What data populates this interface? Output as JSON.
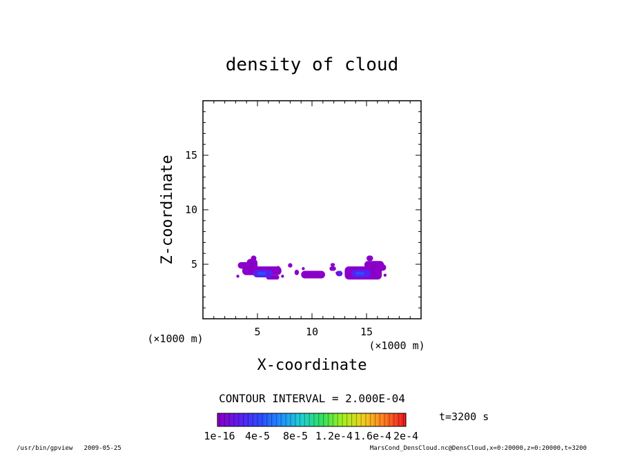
{
  "chart_data": {
    "type": "heatmap",
    "title": "density of cloud",
    "xlabel": "X-coordinate",
    "ylabel": "Z-coordinate",
    "x_unit": "(×1000 m)",
    "y_unit": "(×1000 m)",
    "xlim": [
      0,
      20
    ],
    "ylim": [
      0,
      20
    ],
    "xticks": [
      5,
      10,
      15
    ],
    "yticks": [
      5,
      10,
      15
    ],
    "contour_interval": "CONTOUR INTERVAL = 2.000E-04",
    "time_label": "t=3200 s",
    "colorbar": {
      "labels": [
        "1e-16",
        "4e-5",
        "8e-5",
        "1.2e-4",
        "1.6e-4",
        "2e-4"
      ],
      "colors": [
        "#8a00c8",
        "#5a20f0",
        "#2a4cff",
        "#1e90ff",
        "#20d0d0",
        "#30e060",
        "#a0f020",
        "#f0d020",
        "#ff8020",
        "#f02020"
      ]
    },
    "regions": [
      {
        "level": 1,
        "color": "#8a00c8",
        "cells": [
          [
            3.2,
            4.2,
            4.6,
            5.2
          ],
          [
            4.0,
            5.0,
            4.2,
            5.5
          ],
          [
            4.4,
            4.9,
            5.3,
            5.8
          ],
          [
            3.6,
            7.2,
            4.0,
            4.8
          ],
          [
            5.8,
            7.0,
            3.6,
            4.0
          ],
          [
            7.8,
            8.2,
            4.7,
            5.1
          ],
          [
            8.4,
            8.8,
            4.0,
            4.5
          ],
          [
            9.0,
            11.2,
            3.7,
            4.4
          ],
          [
            11.6,
            12.2,
            4.4,
            4.8
          ],
          [
            11.7,
            12.1,
            4.8,
            5.1
          ],
          [
            13.0,
            16.4,
            3.6,
            4.8
          ],
          [
            14.8,
            16.6,
            4.6,
            5.3
          ],
          [
            15.9,
            16.8,
            4.4,
            5.0
          ],
          [
            15.0,
            15.6,
            5.3,
            5.8
          ]
        ]
      },
      {
        "level": 2,
        "color": "#5a20f0",
        "cells": [
          [
            4.6,
            6.4,
            3.8,
            4.5
          ],
          [
            13.6,
            15.4,
            3.8,
            4.5
          ],
          [
            12.2,
            12.8,
            3.9,
            4.4
          ]
        ]
      },
      {
        "level": 3,
        "color": "#2a4cff",
        "cells": [
          [
            5.0,
            5.8,
            4.0,
            4.3
          ],
          [
            14.0,
            14.8,
            4.0,
            4.3
          ]
        ]
      }
    ],
    "isolated_points": [
      [
        3.2,
        3.9
      ],
      [
        7.3,
        3.9
      ],
      [
        9.2,
        4.6
      ],
      [
        12.3,
        4.2
      ],
      [
        16.7,
        4.0
      ],
      [
        6.9,
        4.7
      ]
    ]
  },
  "footer": {
    "left": "/usr/bin/gpview   2009-05-25",
    "right": "MarsCond_DensCloud.nc@DensCloud,x=0:20000,z=0:20000,t=3200"
  }
}
